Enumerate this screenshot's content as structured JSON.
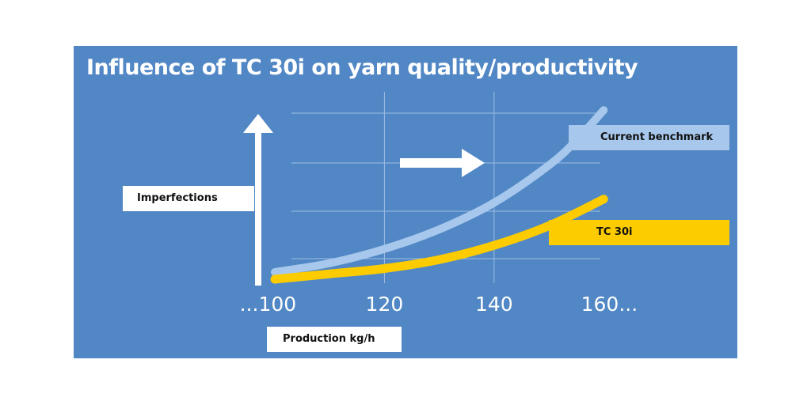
{
  "chart_data": {
    "type": "line",
    "title": "Influence of TC 30i on yarn quality/productivity",
    "xlabel": "Production kg/h",
    "ylabel": "Imperfections",
    "x_ticks": [
      "...100",
      "120",
      "140",
      "160..."
    ],
    "x_tick_values": [
      100,
      120,
      140,
      160
    ],
    "xlim": [
      100,
      163
    ],
    "ylim": [
      0,
      100
    ],
    "grid": true,
    "series": [
      {
        "name": "Current benchmark",
        "color": "#a7c8ec",
        "x": [
          100,
          110,
          120,
          130,
          140,
          150,
          155,
          160
        ],
        "y": [
          4,
          9,
          17,
          28,
          43,
          64,
          78,
          95
        ]
      },
      {
        "name": "TC 30i",
        "color": "#fccc00",
        "x": [
          100,
          110,
          120,
          130,
          140,
          150,
          160
        ],
        "y": [
          0,
          3,
          6,
          11,
          19,
          30,
          45
        ]
      }
    ]
  }
}
